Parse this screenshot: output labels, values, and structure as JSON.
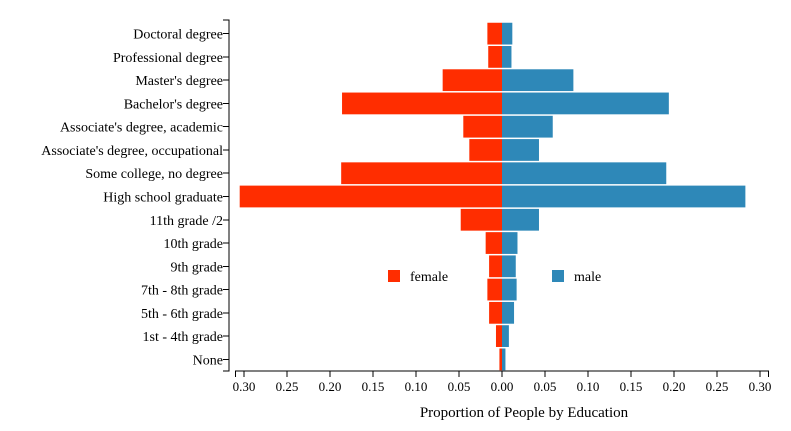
{
  "chart_data": {
    "type": "bar",
    "orientation": "horizontal-diverging",
    "categories": [
      "Doctoral degree",
      "Professional degree",
      "Master's degree",
      "Bachelor's degree",
      "Associate's degree, academic",
      "Associate's degree, occupational",
      "Some college, no degree",
      "High school graduate",
      "11th grade /2",
      "10th grade",
      "9th grade",
      "7th - 8th grade",
      "5th - 6th grade",
      "1st - 4th grade",
      "None"
    ],
    "series": [
      {
        "name": "female",
        "color": "#ff2d00",
        "side": "left",
        "values": [
          0.017,
          0.016,
          0.069,
          0.186,
          0.045,
          0.038,
          0.187,
          0.305,
          0.048,
          0.019,
          0.015,
          0.017,
          0.015,
          0.007,
          0.003
        ]
      },
      {
        "name": "male",
        "color": "#2e88b8",
        "side": "right",
        "values": [
          0.012,
          0.011,
          0.083,
          0.194,
          0.059,
          0.043,
          0.191,
          0.283,
          0.043,
          0.018,
          0.016,
          0.017,
          0.014,
          0.008,
          0.004
        ]
      }
    ],
    "xlabel": "Proportion of People by Education",
    "ylabel": "",
    "xlim": [
      -0.31,
      0.31
    ],
    "x_ticks": [
      -0.3,
      -0.25,
      -0.2,
      -0.15,
      -0.1,
      -0.05,
      0.0,
      0.05,
      0.1,
      0.15,
      0.2,
      0.25,
      0.3
    ],
    "x_tick_labels": [
      "0.30",
      "0.25",
      "0.20",
      "0.15",
      "0.10",
      "0.05",
      "0.00",
      "0.05",
      "0.10",
      "0.15",
      "0.20",
      "0.25",
      "0.30"
    ],
    "legend_position": "center",
    "grid": false
  }
}
